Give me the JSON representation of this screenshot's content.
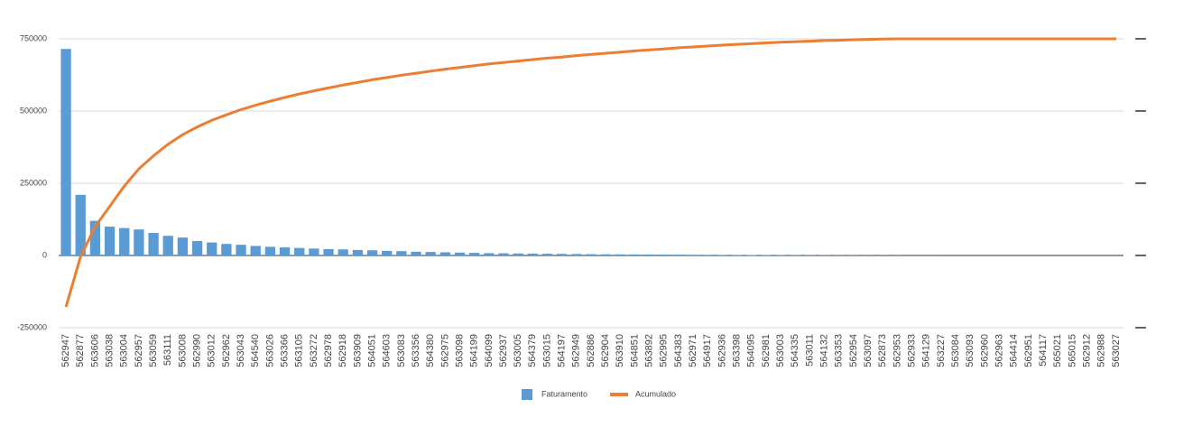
{
  "chart_data": {
    "type": "bar",
    "categories": [
      "562947",
      "562877",
      "563606",
      "563038",
      "563004",
      "562957",
      "563059",
      "563111",
      "563008",
      "562990",
      "563012",
      "562962",
      "563043",
      "564540",
      "563026",
      "563366",
      "563105",
      "563272",
      "562978",
      "562918",
      "563909",
      "564051",
      "564603",
      "563083",
      "563356",
      "564380",
      "562975",
      "563098",
      "564199",
      "564099",
      "562937",
      "563005",
      "564379",
      "563015",
      "564197",
      "562949",
      "562886",
      "562904",
      "563910",
      "564851",
      "563892",
      "562995",
      "564383",
      "562971",
      "564917",
      "562936",
      "563398",
      "564095",
      "562981",
      "563003",
      "564335",
      "563011",
      "564132",
      "563353",
      "562954",
      "563097",
      "562873",
      "562953",
      "562933",
      "564129",
      "563227",
      "563084",
      "563093",
      "562960",
      "562963",
      "564414",
      "562951",
      "564117",
      "565021",
      "565015",
      "562912",
      "562988",
      "563027"
    ],
    "series": [
      {
        "name": "Faturamento",
        "type": "bar",
        "color": "#5b9bd5",
        "values": [
          715000,
          210000,
          120000,
          100000,
          95000,
          90000,
          78000,
          68000,
          62000,
          50000,
          45000,
          40000,
          37000,
          33000,
          30000,
          28000,
          26000,
          24000,
          22000,
          21000,
          19000,
          18000,
          16000,
          15000,
          13000,
          12000,
          11000,
          10000,
          9000,
          8000,
          7500,
          7000,
          6500,
          6000,
          5500,
          5000,
          4500,
          4000,
          3800,
          3500,
          3200,
          3000,
          2800,
          2500,
          2300,
          2000,
          1800,
          1600,
          1400,
          1200,
          1000,
          900,
          800,
          700,
          600,
          500,
          400,
          300,
          200,
          100,
          0,
          0,
          0,
          0,
          0,
          0,
          0,
          0,
          0,
          0,
          0,
          0,
          0
        ]
      },
      {
        "name": "Acumulado",
        "type": "line",
        "color": "#ed7d31",
        "values": [
          -178000,
          -5000,
          100000,
          170000,
          240000,
          300000,
          345000,
          385000,
          418000,
          445000,
          468000,
          487000,
          505000,
          520000,
          534000,
          547000,
          559000,
          570000,
          580000,
          590000,
          599000,
          608000,
          616000,
          624000,
          631000,
          638000,
          645000,
          651000,
          657000,
          663000,
          668000,
          673000,
          678000,
          683000,
          687000,
          692000,
          696000,
          700000,
          704000,
          708000,
          712000,
          715000,
          719000,
          722000,
          725000,
          728000,
          731000,
          733000,
          736000,
          738000,
          740000,
          742000,
          744000,
          745000,
          747000,
          748000,
          749000,
          750000,
          750000,
          750000,
          750000,
          750000,
          750000,
          750000,
          750000,
          750000,
          750000,
          750000,
          750000,
          750000,
          750000,
          750000,
          750000
        ]
      }
    ],
    "ylim": [
      -250000,
      750000
    ],
    "yticks": [
      -250000,
      0,
      250000,
      500000,
      750000
    ],
    "grid": true,
    "legend": "bottom"
  }
}
